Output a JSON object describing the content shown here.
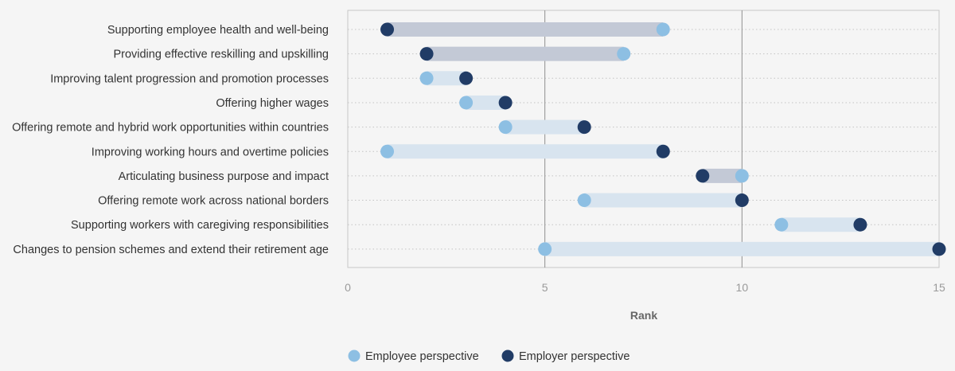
{
  "chart_data": {
    "type": "dumbbell",
    "title": "",
    "xlabel": "Rank",
    "ylabel": "",
    "xlim": [
      0,
      15
    ],
    "xticks": [
      "0",
      "5",
      "10",
      "15"
    ],
    "grid": "vertical lines at 5 and 10, dotted row guides",
    "legend_position": "bottom-center",
    "categories": [
      "Supporting employee health and well-being",
      "Providing effective reskilling and upskilling",
      "Improving talent progression and promotion processes",
      "Offering higher wages",
      "Offering remote and hybrid work opportunities within countries",
      "Improving working hours and overtime policies",
      "Articulating business purpose and impact",
      "Offering remote work across national borders",
      "Supporting workers with caregiving responsibilities",
      "Changes to pension schemes and extend their retirement age"
    ],
    "series": [
      {
        "name": "Employee perspective",
        "values": [
          8,
          7,
          2,
          3,
          4,
          1,
          10,
          6,
          11,
          5
        ]
      },
      {
        "name": "Employer perspective",
        "values": [
          1,
          2,
          3,
          4,
          6,
          8,
          9,
          10,
          13,
          15
        ]
      }
    ]
  },
  "colors": {
    "employee": "#8dbfe3",
    "employer": "#213c66",
    "range_employer_better": "#c3c9d6",
    "range_employee_better": "#d8e4ef",
    "frame": "#c8c8c8",
    "gridline": "#8f8f8f",
    "row_guide": "#c4c4c4"
  }
}
